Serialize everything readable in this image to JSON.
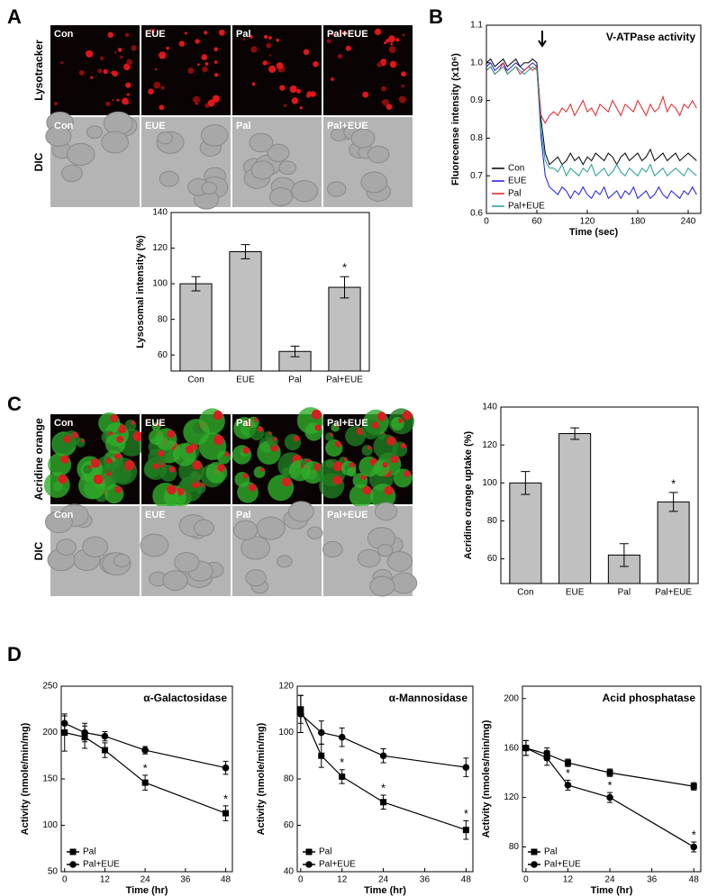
{
  "panel_labels": [
    "A",
    "B",
    "C",
    "D"
  ],
  "micrographs": [
    {
      "label": "Lysotracker",
      "tiles": [
        "Con",
        "EUE",
        "Pal",
        "Pal+EUE"
      ]
    },
    {
      "label": "DIC",
      "tiles": [
        "Con",
        "EUE",
        "Pal",
        "Pal+EUE"
      ]
    },
    {
      "label": "Acridine orange",
      "tiles": [
        "Con",
        "EUE",
        "Pal",
        "Pal+EUE"
      ]
    },
    {
      "label": "DIC",
      "tiles": [
        "Con",
        "EUE",
        "Pal",
        "Pal+EUE"
      ]
    }
  ],
  "chart_data": [
    {
      "type": "bar",
      "ylabel": "Lysosomal intensity (%)",
      "categories": [
        "Con",
        "EUE",
        "Pal",
        "Pal+EUE"
      ],
      "values": [
        100,
        118,
        62,
        98
      ],
      "errors": [
        4,
        4,
        3,
        6
      ],
      "value_annotations": [
        null,
        null,
        null,
        "*"
      ],
      "color": "#c0c0c0",
      "ylim": [
        51,
        140
      ],
      "yticks": [
        60,
        80,
        100,
        120,
        140
      ]
    },
    {
      "type": "line",
      "title": "V-ATPase activity",
      "ylabel": "Fluorecense intensity (x10⁶)",
      "xlabel": "Time (sec)",
      "x": [
        0,
        5,
        10,
        15,
        20,
        25,
        30,
        35,
        40,
        45,
        50,
        55,
        60,
        65,
        70,
        75,
        80,
        85,
        90,
        95,
        100,
        105,
        110,
        115,
        120,
        125,
        130,
        135,
        140,
        145,
        150,
        155,
        160,
        165,
        170,
        175,
        180,
        185,
        190,
        195,
        200,
        205,
        210,
        215,
        220,
        225,
        230,
        235,
        240,
        245,
        250
      ],
      "xlim": [
        0,
        255
      ],
      "xticks": [
        0,
        60,
        120,
        180,
        240
      ],
      "ylim": [
        0.6,
        1.1
      ],
      "yticks": [
        0.6,
        0.7,
        0.8,
        0.9,
        {
          "value": 1,
          "label": "1.0"
        },
        1.1
      ],
      "legend": "lower left",
      "series": [
        {
          "name": "Con",
          "color": "#000000",
          "values": [
            1.0,
            1.01,
            0.99,
            1.0,
            1.01,
            0.99,
            1.0,
            1.01,
            0.99,
            1.0,
            1.0,
            1.01,
            1.0,
            0.85,
            0.76,
            0.73,
            0.74,
            0.75,
            0.73,
            0.74,
            0.76,
            0.74,
            0.75,
            0.73,
            0.75,
            0.74,
            0.76,
            0.75,
            0.74,
            0.76,
            0.75,
            0.73,
            0.75,
            0.76,
            0.74,
            0.75,
            0.76,
            0.74,
            0.75,
            0.77,
            0.74,
            0.75,
            0.76,
            0.74,
            0.75,
            0.76,
            0.74,
            0.75,
            0.76,
            0.75,
            0.74
          ]
        },
        {
          "name": "EUE",
          "color": "#1a1ae6",
          "values": [
            0.99,
            1.0,
            0.98,
            0.99,
            1.0,
            0.98,
            0.99,
            1.0,
            0.99,
            0.98,
            0.99,
            1.0,
            0.99,
            0.8,
            0.7,
            0.67,
            0.66,
            0.65,
            0.67,
            0.66,
            0.64,
            0.66,
            0.65,
            0.67,
            0.65,
            0.64,
            0.66,
            0.65,
            0.67,
            0.64,
            0.65,
            0.66,
            0.64,
            0.66,
            0.65,
            0.67,
            0.64,
            0.65,
            0.66,
            0.64,
            0.65,
            0.67,
            0.65,
            0.64,
            0.66,
            0.65,
            0.64,
            0.66,
            0.65,
            0.67,
            0.65
          ]
        },
        {
          "name": "Pal",
          "color": "#e62020",
          "values": [
            0.98,
            0.99,
            0.97,
            0.98,
            1.0,
            0.97,
            0.98,
            0.99,
            0.97,
            0.98,
            0.99,
            0.98,
            0.99,
            0.86,
            0.84,
            0.86,
            0.87,
            0.86,
            0.88,
            0.87,
            0.89,
            0.86,
            0.88,
            0.9,
            0.87,
            0.88,
            0.86,
            0.89,
            0.88,
            0.87,
            0.9,
            0.88,
            0.86,
            0.89,
            0.88,
            0.87,
            0.9,
            0.88,
            0.86,
            0.89,
            0.87,
            0.88,
            0.91,
            0.87,
            0.89,
            0.88,
            0.86,
            0.89,
            0.88,
            0.9,
            0.88
          ]
        },
        {
          "name": "Pal+EUE",
          "color": "#1f9c96",
          "values": [
            0.98,
            0.99,
            0.97,
            0.98,
            0.99,
            0.97,
            0.98,
            0.99,
            0.98,
            0.97,
            0.98,
            0.99,
            0.98,
            0.82,
            0.74,
            0.72,
            0.72,
            0.71,
            0.73,
            0.7,
            0.72,
            0.71,
            0.7,
            0.72,
            0.71,
            0.73,
            0.7,
            0.71,
            0.72,
            0.7,
            0.71,
            0.73,
            0.71,
            0.7,
            0.72,
            0.71,
            0.7,
            0.72,
            0.71,
            0.73,
            0.7,
            0.71,
            0.72,
            0.7,
            0.71,
            0.72,
            0.71,
            0.7,
            0.72,
            0.71,
            0.7
          ]
        }
      ]
    },
    {
      "type": "bar",
      "ylabel": "Acridine orange uptake (%)",
      "categories": [
        "Con",
        "EUE",
        "Pal",
        "Pal+EUE"
      ],
      "values": [
        100,
        126,
        62,
        90
      ],
      "errors": [
        6,
        3,
        6,
        5
      ],
      "value_annotations": [
        null,
        null,
        null,
        "*"
      ],
      "color": "#c0c0c0",
      "ylim": [
        47,
        140
      ],
      "yticks": [
        60,
        80,
        100,
        120,
        140
      ]
    },
    {
      "type": "line",
      "title": "α-Galactosidase",
      "ylabel": "Activity (nmole/min/mg)",
      "xlabel": "Time (hr)",
      "x": [
        0,
        6,
        12,
        24,
        48
      ],
      "xlim": [
        -1,
        50
      ],
      "xticks": [
        0,
        12,
        24,
        36,
        48
      ],
      "ylim": [
        50,
        250
      ],
      "yticks": [
        50,
        100,
        150,
        200,
        250
      ],
      "legend": "lower left",
      "series": [
        {
          "name": "Pal",
          "color": "#000000",
          "marker": "square",
          "values": [
            200,
            195,
            181,
            146,
            113
          ],
          "errors": [
            20,
            12,
            8,
            8,
            8
          ],
          "annotations": [
            null,
            null,
            null,
            "*",
            "*"
          ]
        },
        {
          "name": "Pal+EUE",
          "color": "#000000",
          "marker": "circle",
          "values": [
            210,
            200,
            196,
            181,
            162
          ],
          "errors": [
            8,
            10,
            5,
            4,
            7
          ]
        }
      ]
    },
    {
      "type": "line",
      "title": "α-Mannosidase",
      "ylabel": "Activity (nmole/min/mg)",
      "xlabel": "Time (hr)",
      "x": [
        0,
        6,
        12,
        24,
        48
      ],
      "xlim": [
        -1,
        50
      ],
      "xticks": [
        0,
        12,
        24,
        36,
        48
      ],
      "ylim": [
        40,
        120
      ],
      "yticks": [
        40,
        60,
        80,
        100,
        120
      ],
      "legend": "lower left",
      "series": [
        {
          "name": "Pal",
          "color": "#000000",
          "marker": "square",
          "values": [
            110,
            90,
            81,
            70,
            58
          ],
          "errors": [
            6,
            5,
            3,
            3,
            4
          ],
          "annotations": [
            null,
            null,
            "*",
            "*",
            "*"
          ]
        },
        {
          "name": "Pal+EUE",
          "color": "#000000",
          "marker": "circle",
          "values": [
            108,
            100,
            98,
            90,
            85
          ],
          "errors": [
            8,
            5,
            4,
            3,
            4
          ]
        }
      ]
    },
    {
      "type": "line",
      "title": "Acid phosphatase",
      "ylabel": "Activity (nmoles/min/mg)",
      "xlabel": "Time (hr)",
      "x": [
        0,
        6,
        12,
        24,
        48
      ],
      "xlim": [
        -1,
        50
      ],
      "xticks": [
        0,
        12,
        24,
        36,
        48
      ],
      "ylim": [
        60,
        210
      ],
      "yticks": [
        80,
        120,
        160,
        200
      ],
      "legend": "lower left",
      "series": [
        {
          "name": "Pal",
          "color": "#000000",
          "marker": "square",
          "values": [
            160,
            155,
            148,
            140,
            129
          ],
          "errors": [
            6,
            5,
            3,
            3,
            3
          ]
        },
        {
          "name": "Pal+EUE",
          "color": "#000000",
          "marker": "circle",
          "values": [
            160,
            152,
            130,
            120,
            80
          ],
          "errors": [
            6,
            6,
            4,
            4,
            4
          ],
          "annotations": [
            null,
            null,
            "*",
            "*",
            "*"
          ]
        }
      ]
    }
  ]
}
